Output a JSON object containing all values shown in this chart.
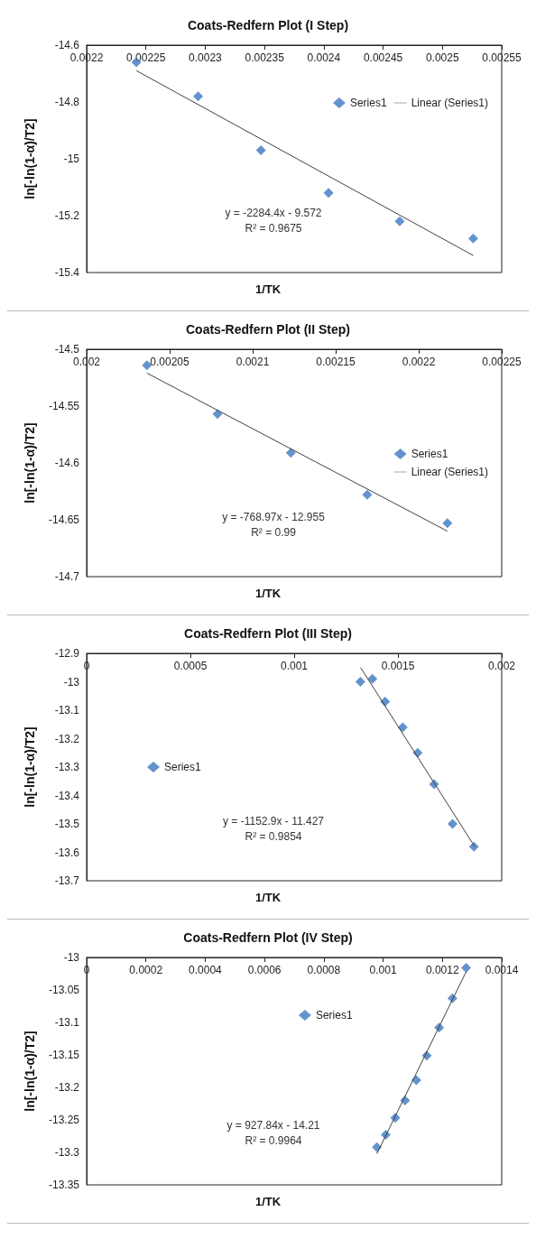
{
  "chart_data": [
    {
      "type": "scatter",
      "title": "Coats-Redfern Plot (I Step)",
      "xlabel": "1/TK",
      "ylabel": "ln[-ln(1-α)/T2]",
      "xlim": [
        0.0022,
        0.00255
      ],
      "xticks": [
        0.0022,
        0.00225,
        0.0023,
        0.00235,
        0.0024,
        0.00245,
        0.0025,
        0.00255
      ],
      "ylim": [
        -15.4,
        -14.6
      ],
      "yticks": [
        -14.6,
        -14.8,
        -15,
        -15.2,
        -15.4
      ],
      "grid": false,
      "legend": "top right",
      "series": [
        {
          "name": "Series1",
          "color": "#3c78c0",
          "marker": "diamond",
          "x": [
            0.002242,
            0.002294,
            0.002347,
            0.002404,
            0.002464,
            0.002526
          ],
          "values": [
            -14.66,
            -14.78,
            -14.97,
            -15.12,
            -15.22,
            -15.28
          ]
        },
        {
          "name": "Linear (Series1)",
          "type": "line",
          "marker": "none",
          "color": "#404040",
          "x": [
            0.002242,
            0.002526
          ],
          "values": [
            -14.69,
            -15.34
          ]
        }
      ],
      "annotations": [
        "y = -2284.4x - 9.572",
        "R² = 0.9675"
      ]
    },
    {
      "type": "scatter",
      "title": "Coats-Redfern Plot (II Step)",
      "xlabel": "1/TK",
      "ylabel": "ln[-ln(1-α)/T2]",
      "xlim": [
        0.002,
        0.00225
      ],
      "xticks": [
        0.002,
        0.00205,
        0.0021,
        0.00215,
        0.0022,
        0.00225
      ],
      "ylim": [
        -14.7,
        -14.5
      ],
      "yticks": [
        -14.5,
        -14.55,
        -14.6,
        -14.65,
        -14.7
      ],
      "grid": false,
      "legend": "right",
      "series": [
        {
          "name": "Series1",
          "color": "#3c78c0",
          "marker": "diamond",
          "x": [
            0.0020363,
            0.0020788,
            0.002123,
            0.002169,
            0.0022173
          ],
          "values": [
            -14.514,
            -14.557,
            -14.591,
            -14.628,
            -14.653
          ]
        },
        {
          "name": "Linear (Series1)",
          "type": "line",
          "marker": "none",
          "color": "#404040",
          "x": [
            0.0020363,
            0.0022173
          ],
          "values": [
            -14.521,
            -14.66
          ]
        }
      ],
      "annotations": [
        "y = -768.97x - 12.955",
        "R² = 0.99"
      ]
    },
    {
      "type": "scatter",
      "title": "Coats-Redfern Plot (III Step)",
      "xlabel": "1/TK",
      "ylabel": "ln[-ln(1-α)/T2]",
      "xlim": [
        0,
        0.002
      ],
      "xticks": [
        0,
        0.0005,
        0.001,
        0.0015,
        0.002
      ],
      "ylim": [
        -13.7,
        -12.9
      ],
      "yticks": [
        -12.9,
        -13,
        -13.1,
        -13.2,
        -13.3,
        -13.4,
        -13.5,
        -13.6,
        -13.7
      ],
      "grid": false,
      "legend": "left",
      "series": [
        {
          "name": "Series1",
          "color": "#3c78c0",
          "marker": "diamond",
          "x": [
            0.001319,
            0.001377,
            0.001438,
            0.001523,
            0.001595,
            0.001674,
            0.001763,
            0.001866
          ],
          "values": [
            -13.0,
            -12.99,
            -13.07,
            -13.16,
            -13.25,
            -13.36,
            -13.5,
            -13.58
          ]
        },
        {
          "type": "line",
          "marker": "none",
          "color": "#404040",
          "x": [
            0.00132,
            0.00187
          ],
          "values": [
            -12.95,
            -13.58
          ]
        }
      ],
      "annotations": [
        "y = -1152.9x - 11.427",
        "R² = 0.9854"
      ]
    },
    {
      "type": "scatter",
      "title": "Coats-Redfern Plot (IV Step)",
      "xlabel": "1/TK",
      "ylabel": "ln[-ln(1-α)/T2]",
      "xlim": [
        0,
        0.0014
      ],
      "xticks": [
        0,
        0.0002,
        0.0004,
        0.0006,
        0.0008,
        0.001,
        0.0012,
        0.0014
      ],
      "ylim": [
        -13.35,
        -13
      ],
      "yticks": [
        -13,
        -13.05,
        -13.1,
        -13.15,
        -13.2,
        -13.25,
        -13.3,
        -13.35
      ],
      "grid": false,
      "legend": "top",
      "series": [
        {
          "name": "Series1",
          "color": "#3c78c0",
          "marker": "diamond",
          "x": [
            0.000979,
            0.001009,
            0.001041,
            0.001074,
            0.001112,
            0.001147,
            0.001189,
            0.001234,
            0.00128
          ],
          "values": [
            -13.292,
            -13.273,
            -13.247,
            -13.22,
            -13.189,
            -13.151,
            -13.108,
            -13.063,
            -13.016
          ]
        },
        {
          "type": "line",
          "marker": "none",
          "color": "#404040",
          "x": [
            0.000979,
            0.00128
          ],
          "values": [
            -13.302,
            -13.022
          ]
        }
      ],
      "annotations": [
        "y = 927.84x - 14.21",
        "R² = 0.9964"
      ]
    }
  ]
}
